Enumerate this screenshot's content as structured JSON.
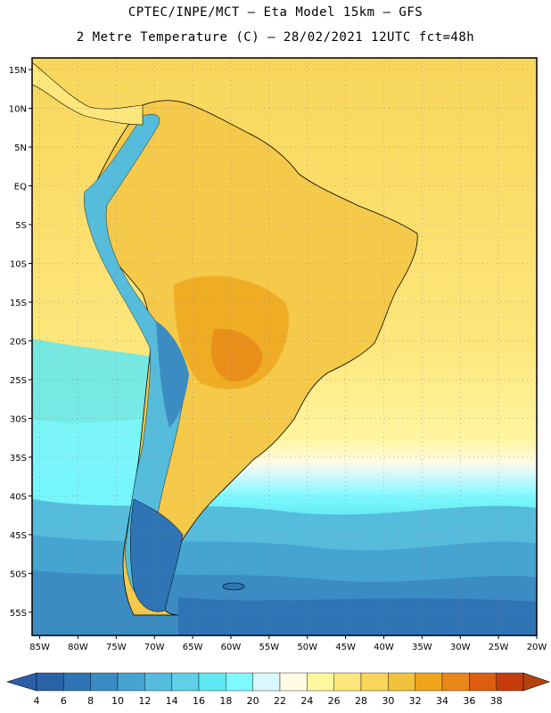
{
  "header": {
    "line1": "CPTEC/INPE/MCT –  Eta Model 15km – GFS",
    "line2": "2 Metre Temperature (C) – 28/02/2021 12UTC fct=48h"
  },
  "map": {
    "lon_labels": [
      "85W",
      "80W",
      "75W",
      "70W",
      "65W",
      "60W",
      "55W",
      "50W",
      "45W",
      "40W",
      "35W",
      "30W",
      "25W",
      "20W"
    ],
    "lat_labels": [
      "15N",
      "10N",
      "5N",
      "EQ",
      "5S",
      "10S",
      "15S",
      "20S",
      "25S",
      "30S",
      "35S",
      "40S",
      "45S",
      "50S",
      "55S"
    ],
    "lon_range": [
      -86,
      -20
    ],
    "lat_range": [
      16.5,
      -58
    ]
  },
  "colorbar": {
    "values": [
      "4",
      "6",
      "8",
      "10",
      "12",
      "14",
      "16",
      "18",
      "20",
      "22",
      "24",
      "26",
      "28",
      "30",
      "32",
      "34",
      "36",
      "38"
    ],
    "colors": [
      "#2a62a6",
      "#2f74b4",
      "#3a8cc2",
      "#45a4d0",
      "#55bcdc",
      "#5fd0e8",
      "#5ee8f2",
      "#7df9ff",
      "#d8f8fc",
      "#fffbe4",
      "#fff6a0",
      "#fde77c",
      "#f8d65a",
      "#f1c23c",
      "#eea51c",
      "#e88818",
      "#dd5e10",
      "#c63c0c"
    ],
    "left_arrow_color": "#2d5fa8",
    "right_arrow_color": "#b5420e"
  }
}
